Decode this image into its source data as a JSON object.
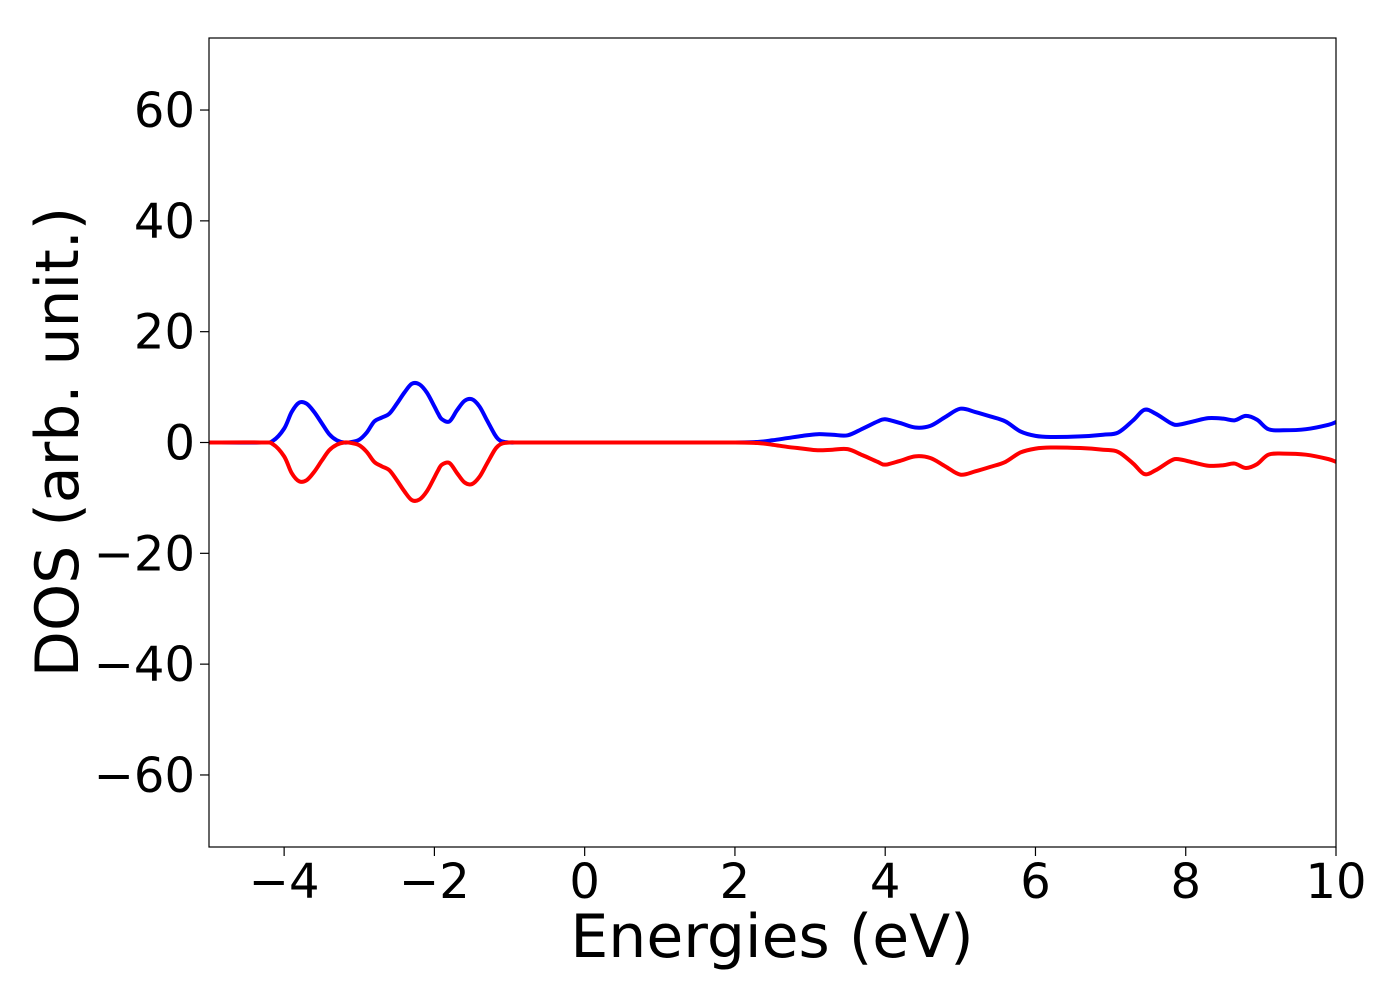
{
  "chart_data": {
    "type": "line",
    "title": "",
    "xlabel": "Energies (eV)",
    "ylabel": "DOS (arb. unit.)",
    "xlim": [
      -5,
      10
    ],
    "ylim": [
      -73,
      73
    ],
    "xticks": [
      -4,
      -2,
      0,
      2,
      4,
      6,
      8,
      10
    ],
    "xtick_labels": [
      "−4",
      "−2",
      "0",
      "2",
      "4",
      "6",
      "8",
      "10"
    ],
    "yticks": [
      60,
      40,
      20,
      0,
      -20,
      -40,
      -60
    ],
    "ytick_labels": [
      "60",
      "40",
      "20",
      "0",
      "−20",
      "−40",
      "−60"
    ],
    "grid": false,
    "legend": "none",
    "series": [
      {
        "color": "#0000ff",
        "x": [
          -5,
          -4.3,
          -4.15,
          -4.0,
          -3.9,
          -3.8,
          -3.7,
          -3.6,
          -3.5,
          -3.4,
          -3.3,
          -3.2,
          -3.1,
          -3.0,
          -2.9,
          -2.8,
          -2.7,
          -2.6,
          -2.5,
          -2.4,
          -2.3,
          -2.2,
          -2.1,
          -2.0,
          -1.95,
          -1.9,
          -1.8,
          -1.7,
          -1.6,
          -1.5,
          -1.4,
          -1.3,
          -1.2,
          -1.15,
          -1.1,
          -1.0,
          -0.9,
          -0.8,
          -0.7,
          -0.6,
          -0.5,
          0,
          1,
          2,
          2.3,
          2.5,
          2.7,
          2.9,
          3.1,
          3.3,
          3.5,
          3.7,
          3.9,
          4.0,
          4.2,
          4.4,
          4.6,
          4.8,
          5.0,
          5.2,
          5.4,
          5.6,
          5.8,
          6.0,
          6.2,
          6.6,
          6.9,
          7.1,
          7.3,
          7.45,
          7.6,
          7.8,
          7.9,
          8.1,
          8.3,
          8.5,
          8.65,
          8.8,
          8.95,
          9.1,
          9.3,
          9.6,
          9.9,
          10
        ],
        "y": [
          0,
          0,
          0.3,
          2.5,
          5.5,
          7.2,
          7.0,
          5.5,
          3.5,
          1.5,
          0.4,
          0,
          0.1,
          0.5,
          1.8,
          3.8,
          4.5,
          5.2,
          7.0,
          9.0,
          10.6,
          10.5,
          9.0,
          6.5,
          5.2,
          4.2,
          3.8,
          5.8,
          7.5,
          7.8,
          6.5,
          4.0,
          1.5,
          0.6,
          0.2,
          0,
          0,
          0,
          0,
          0,
          0,
          0,
          0,
          0,
          0.1,
          0.4,
          0.8,
          1.2,
          1.5,
          1.4,
          1.3,
          2.5,
          3.8,
          4.2,
          3.5,
          2.7,
          3.0,
          4.6,
          6.1,
          5.5,
          4.7,
          3.8,
          2.0,
          1.2,
          1.0,
          1.1,
          1.4,
          1.8,
          4.0,
          5.9,
          5.2,
          3.5,
          3.2,
          3.8,
          4.4,
          4.3,
          4.0,
          4.8,
          4.1,
          2.4,
          2.2,
          2.4,
          3.2,
          3.7
        ]
      },
      {
        "color": "#ff0000",
        "x": [
          -5,
          -4.3,
          -4.15,
          -4.0,
          -3.9,
          -3.8,
          -3.7,
          -3.6,
          -3.5,
          -3.4,
          -3.3,
          -3.2,
          -3.1,
          -3.0,
          -2.9,
          -2.8,
          -2.7,
          -2.6,
          -2.5,
          -2.4,
          -2.3,
          -2.2,
          -2.1,
          -2.0,
          -1.95,
          -1.9,
          -1.8,
          -1.7,
          -1.6,
          -1.5,
          -1.4,
          -1.3,
          -1.2,
          -1.15,
          -1.1,
          -1.0,
          -0.9,
          -0.8,
          -0.7,
          -0.6,
          -0.5,
          0,
          1,
          2,
          2.3,
          2.5,
          2.7,
          2.9,
          3.1,
          3.3,
          3.5,
          3.7,
          3.9,
          4.0,
          4.2,
          4.4,
          4.6,
          4.8,
          5.0,
          5.2,
          5.4,
          5.6,
          5.8,
          6.0,
          6.2,
          6.6,
          6.9,
          7.1,
          7.3,
          7.45,
          7.6,
          7.8,
          7.9,
          8.1,
          8.3,
          8.5,
          8.65,
          8.8,
          8.95,
          9.1,
          9.3,
          9.6,
          9.9,
          10
        ],
        "y": [
          0,
          0,
          -0.3,
          -2.5,
          -5.5,
          -7.0,
          -6.8,
          -5.3,
          -3.3,
          -1.4,
          -0.4,
          0,
          -0.1,
          -0.5,
          -1.7,
          -3.5,
          -4.3,
          -5.0,
          -6.8,
          -8.8,
          -10.4,
          -10.3,
          -8.8,
          -6.3,
          -5.0,
          -4.0,
          -3.7,
          -5.5,
          -7.2,
          -7.5,
          -6.2,
          -3.8,
          -1.4,
          -0.6,
          -0.2,
          0,
          0,
          0,
          0,
          0,
          0,
          0,
          0,
          0,
          -0.1,
          -0.4,
          -0.8,
          -1.1,
          -1.4,
          -1.3,
          -1.2,
          -2.3,
          -3.5,
          -4.0,
          -3.3,
          -2.5,
          -2.8,
          -4.3,
          -5.8,
          -5.2,
          -4.4,
          -3.5,
          -1.8,
          -1.1,
          -0.9,
          -1.0,
          -1.3,
          -1.7,
          -3.8,
          -5.7,
          -5.0,
          -3.3,
          -3.0,
          -3.6,
          -4.2,
          -4.1,
          -3.8,
          -4.6,
          -3.9,
          -2.2,
          -2.0,
          -2.2,
          -3.0,
          -3.5
        ]
      }
    ]
  }
}
